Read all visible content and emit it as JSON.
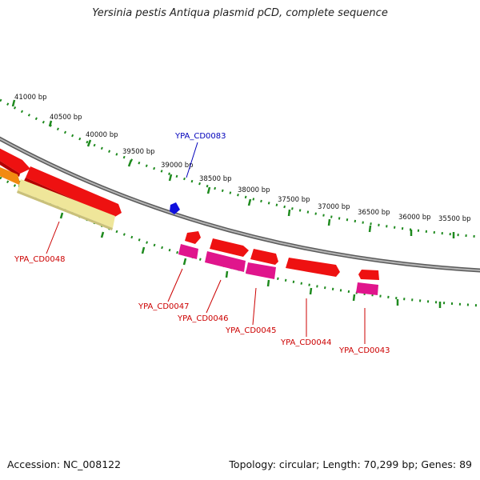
{
  "title": "Yersinia pestis Antiqua plasmid pCD, complete sequence",
  "accession": "Accession: NC_008122",
  "summary": "Topology: circular; Length: 70,299 bp; Genes: 89",
  "colors": {
    "backbone": "#8a8a8a",
    "ruler": "#1e8a1e",
    "gene_red": "#ee1111",
    "gene_magenta": "#e0158c",
    "gene_orange": "#f28a10",
    "gene_pale": "#efe69a",
    "gene_blue": "#1010dd",
    "label_red": "#cc0000",
    "label_blue": "#0000bb"
  },
  "ruler_labels": [
    "41000 bp",
    "40500 bp",
    "40000 bp",
    "39500 bp",
    "39000 bp",
    "38500 bp",
    "38000 bp",
    "37500 bp",
    "37000 bp",
    "36500 bp",
    "36000 bp",
    "35500 bp"
  ],
  "gene_labels": [
    {
      "id": "cd0083",
      "text": "YPA_CD0083",
      "color": "blue"
    },
    {
      "id": "cd0048",
      "text": "YPA_CD0048",
      "color": "red"
    },
    {
      "id": "cd0047",
      "text": "YPA_CD0047",
      "color": "red"
    },
    {
      "id": "cd0046",
      "text": "YPA_CD0046",
      "color": "red"
    },
    {
      "id": "cd0045",
      "text": "YPA_CD0045",
      "color": "red"
    },
    {
      "id": "cd0044",
      "text": "YPA_CD0044",
      "color": "red"
    },
    {
      "id": "cd0043",
      "text": "YPA_CD0043",
      "color": "red"
    }
  ]
}
